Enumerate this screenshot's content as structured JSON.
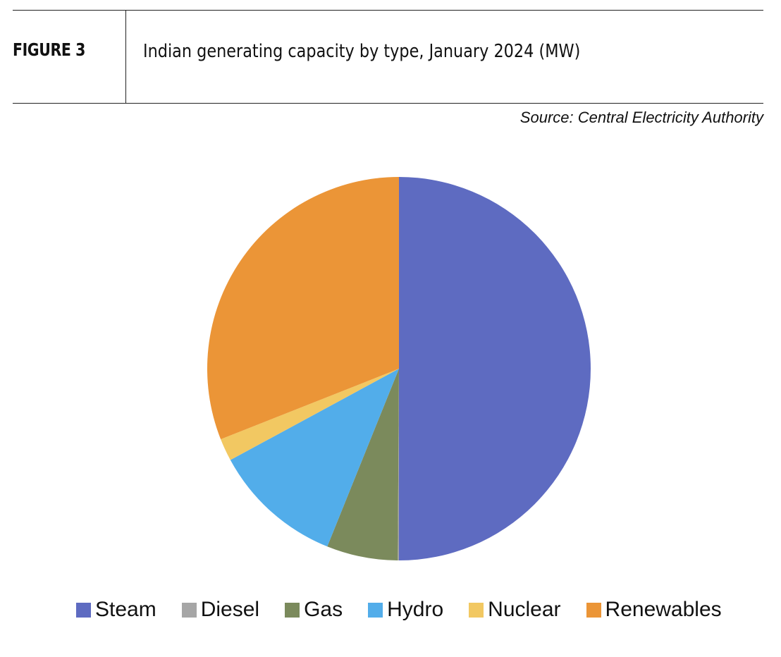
{
  "header": {
    "figure_label": "FIGURE 3",
    "title": "Indian generating capacity by type, January 2024 (MW)",
    "source": "Source: Central Electricity Authority"
  },
  "chart_data": {
    "type": "pie",
    "title": "Indian generating capacity by type, January 2024 (MW)",
    "categories": [
      "Steam",
      "Diesel",
      "Gas",
      "Hydro",
      "Nuclear",
      "Renewables"
    ],
    "values": [
      50.0,
      0.1,
      6.0,
      11.0,
      1.9,
      31.0
    ],
    "value_unit": "percent share (estimated)",
    "colors": [
      "#5e6bc1",
      "#a6a6a6",
      "#7b8a5c",
      "#52adea",
      "#f2c862",
      "#eb9537"
    ],
    "start_angle_deg": 0,
    "direction": "clockwise",
    "legend_position": "bottom"
  }
}
